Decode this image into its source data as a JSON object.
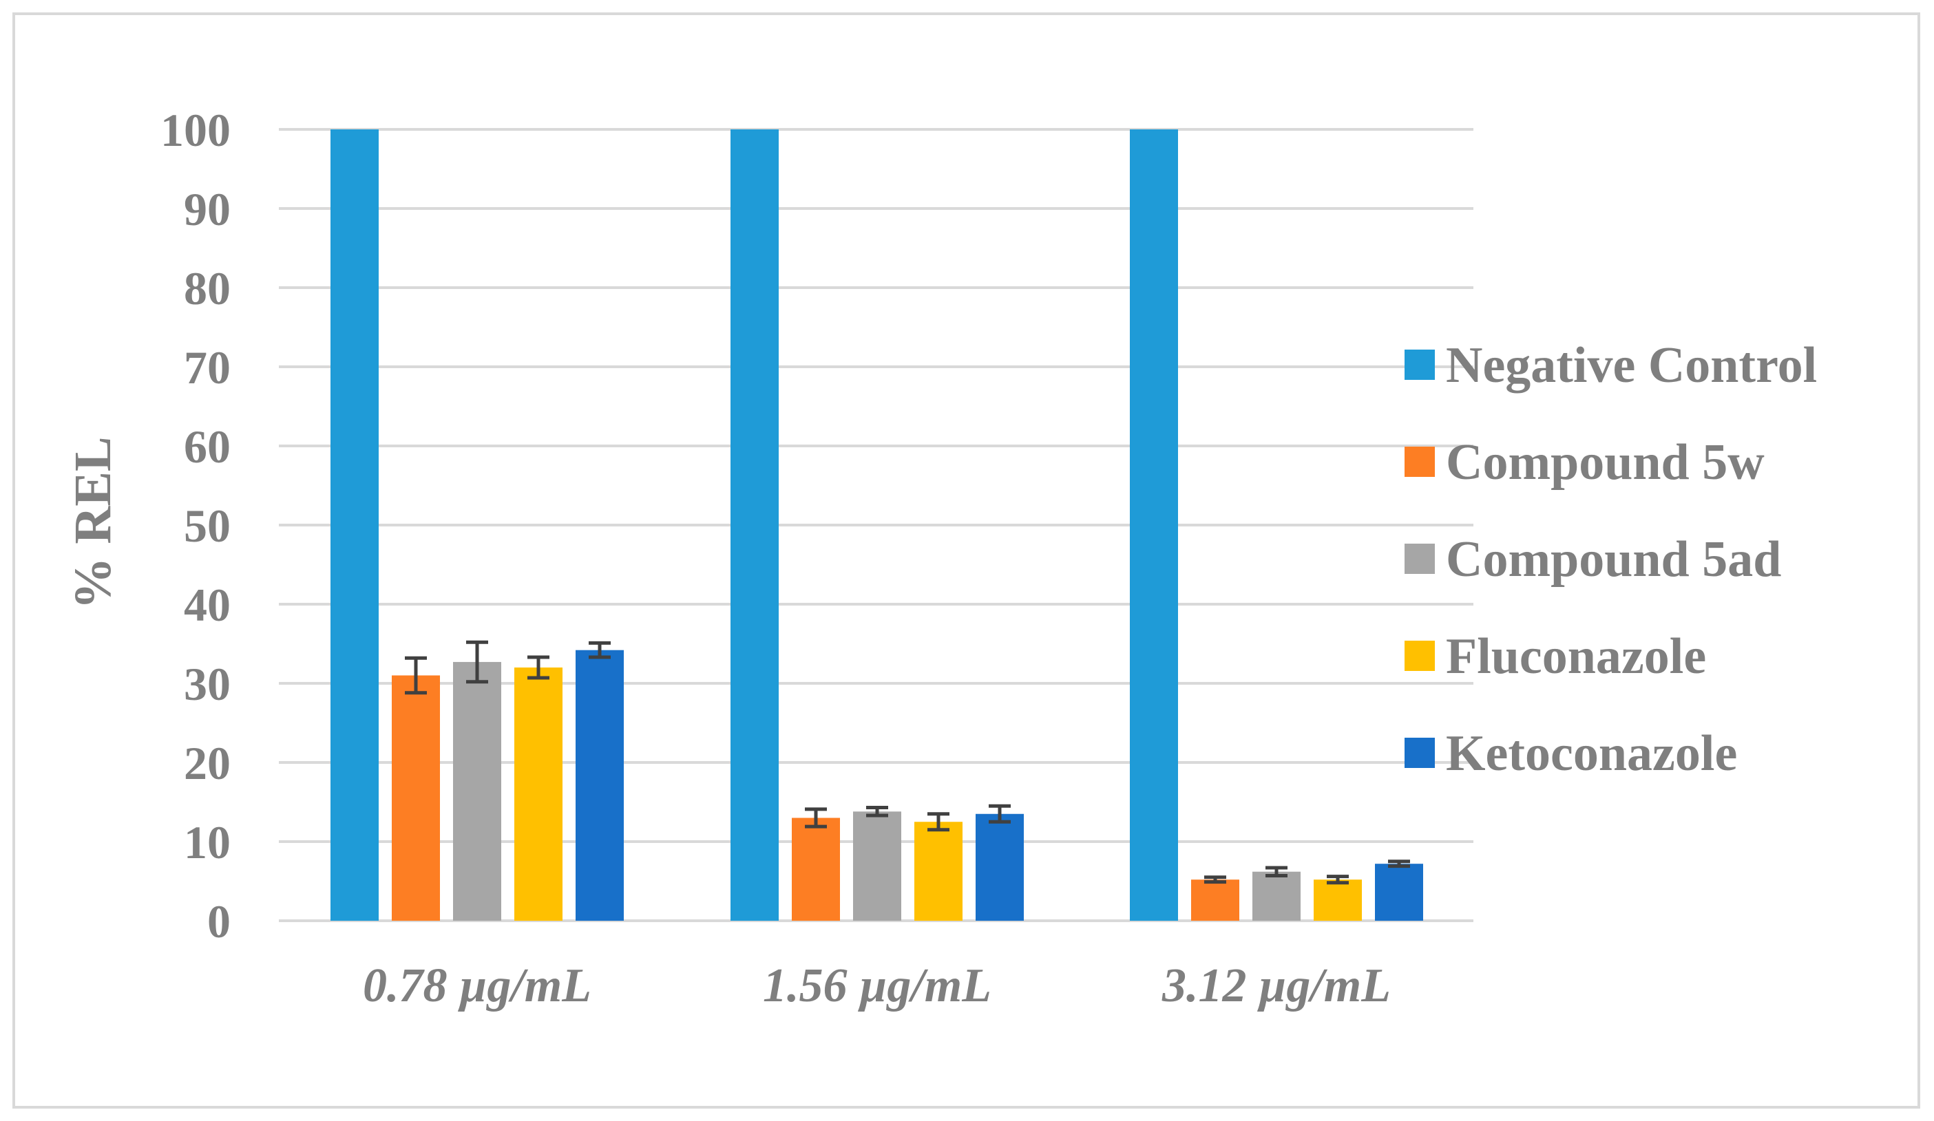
{
  "chart_data": {
    "type": "bar",
    "title": "",
    "xlabel": "",
    "ylabel": "% REL",
    "ylim": [
      0,
      100
    ],
    "yticks": [
      0,
      10,
      20,
      30,
      40,
      50,
      60,
      70,
      80,
      90,
      100
    ],
    "grid": true,
    "legend_position": "right",
    "categories": [
      "0.78 µg/mL",
      "1.56 µg/mL",
      "3.12 µg/mL"
    ],
    "series": [
      {
        "name": "Negative Control",
        "color": "#1f9bd7",
        "values": [
          100,
          100,
          100
        ],
        "errors": [
          0,
          0,
          0
        ]
      },
      {
        "name": "Compound 5w",
        "color": "#fd7e23",
        "values": [
          31,
          13,
          5.2
        ],
        "errors": [
          2.2,
          1.1,
          0.3
        ]
      },
      {
        "name": "Compound 5ad",
        "color": "#a6a6a6",
        "values": [
          32.7,
          13.8,
          6.2
        ],
        "errors": [
          2.5,
          0.5,
          0.5
        ]
      },
      {
        "name": "Fluconazole",
        "color": "#ffc000",
        "values": [
          32,
          12.5,
          5.2
        ],
        "errors": [
          1.3,
          1.0,
          0.4
        ]
      },
      {
        "name": "Ketoconazole",
        "color": "#1870c9",
        "values": [
          34.2,
          13.5,
          7.2
        ],
        "errors": [
          0.9,
          1.0,
          0.3
        ]
      }
    ]
  }
}
